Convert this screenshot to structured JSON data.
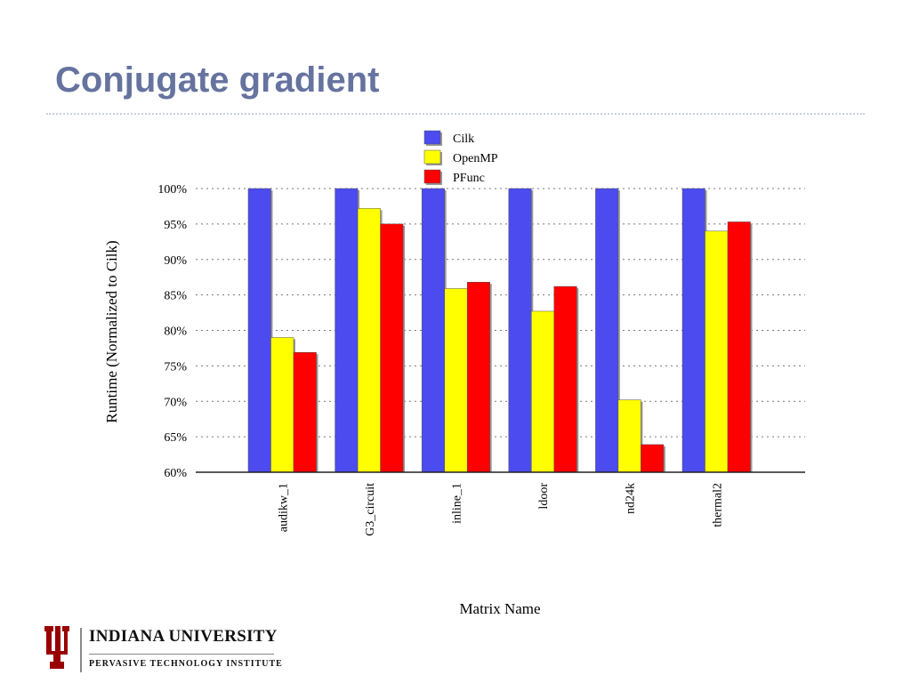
{
  "slide": {
    "title": "Conjugate gradient"
  },
  "footer": {
    "university": "INDIANA UNIVERSITY",
    "institute": "PERVASIVE TECHNOLOGY INSTITUTE",
    "brand_color": "#990000"
  },
  "chart_data": {
    "type": "bar",
    "title": "",
    "xlabel": "Matrix Name",
    "ylabel": "Runtime (Normalized to Cilk)",
    "ylim": [
      60,
      100
    ],
    "yticks": [
      "60%",
      "65%",
      "70%",
      "75%",
      "80%",
      "85%",
      "90%",
      "95%",
      "100%"
    ],
    "grid": true,
    "legend_position": "top",
    "categories": [
      "audikw_1",
      "G3_circuit",
      "inline_1",
      "ldoor",
      "nd24k",
      "thermal2"
    ],
    "series": [
      {
        "name": "Cilk",
        "color": "#4b4bf0",
        "values": [
          100,
          100,
          100,
          100,
          100,
          100
        ]
      },
      {
        "name": "OpenMP",
        "color": "#ffff00",
        "values": [
          79,
          97.2,
          85.9,
          82.7,
          70.2,
          94
        ]
      },
      {
        "name": "PFunc",
        "color": "#ff0000",
        "values": [
          76.9,
          95,
          86.8,
          86.2,
          63.9,
          95.3
        ]
      }
    ]
  }
}
